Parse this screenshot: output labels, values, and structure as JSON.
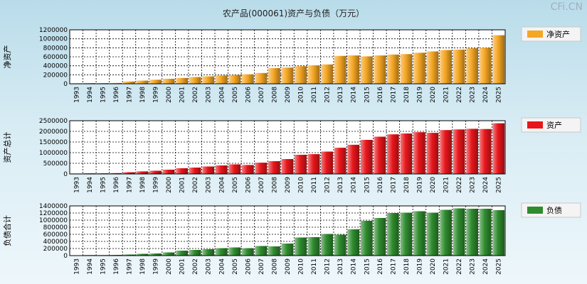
{
  "title": "农产品(000061)资产与负债（万元）",
  "watermark": "CFi.CN",
  "chart_data": [
    {
      "type": "bar",
      "series_name": "净资产",
      "ylabel": "净资产",
      "color": "#f5a623",
      "ylim": [
        0,
        1200000
      ],
      "yticks": [
        0,
        200000,
        400000,
        600000,
        800000,
        1000000,
        1200000
      ],
      "categories": [
        "1993",
        "1994",
        "1995",
        "1996",
        "1997",
        "1998",
        "1999",
        "2000",
        "2001",
        "2002",
        "2003",
        "2004",
        "2005",
        "2006",
        "2007",
        "2008",
        "2009",
        "2010",
        "2011",
        "2012",
        "2013",
        "2014",
        "2015",
        "2016",
        "2017",
        "2018",
        "2019",
        "2020",
        "2021",
        "2022",
        "2023",
        "2024",
        "2025"
      ],
      "values": [
        10000,
        15000,
        15000,
        18000,
        50000,
        70000,
        90000,
        110000,
        130000,
        150000,
        165000,
        185000,
        195000,
        210000,
        240000,
        350000,
        360000,
        390000,
        410000,
        430000,
        620000,
        630000,
        610000,
        630000,
        650000,
        660000,
        690000,
        720000,
        750000,
        760000,
        790000,
        800000,
        1080000
      ]
    },
    {
      "type": "bar",
      "series_name": "资产",
      "ylabel": "资产总计",
      "color": "#e8161b",
      "ylim": [
        0,
        2500000
      ],
      "yticks": [
        0,
        500000,
        1000000,
        1500000,
        2000000,
        2500000
      ],
      "categories": [
        "1993",
        "1994",
        "1995",
        "1996",
        "1997",
        "1998",
        "1999",
        "2000",
        "2001",
        "2002",
        "2003",
        "2004",
        "2005",
        "2006",
        "2007",
        "2008",
        "2009",
        "2010",
        "2011",
        "2012",
        "2013",
        "2014",
        "2015",
        "2016",
        "2017",
        "2018",
        "2019",
        "2020",
        "2021",
        "2022",
        "2023",
        "2024",
        "2025"
      ],
      "values": [
        20000,
        30000,
        30000,
        40000,
        80000,
        120000,
        150000,
        200000,
        270000,
        300000,
        350000,
        400000,
        450000,
        420000,
        530000,
        600000,
        700000,
        900000,
        930000,
        1050000,
        1230000,
        1370000,
        1600000,
        1750000,
        1860000,
        1900000,
        1960000,
        1930000,
        2060000,
        2090000,
        2120000,
        2110000,
        2380000
      ]
    },
    {
      "type": "bar",
      "series_name": "负债",
      "ylabel": "负债合计",
      "color": "#2e8b2e",
      "ylim": [
        0,
        1400000
      ],
      "yticks": [
        0,
        200000,
        400000,
        600000,
        800000,
        1000000,
        1200000,
        1400000
      ],
      "categories": [
        "1993",
        "1994",
        "1995",
        "1996",
        "1997",
        "1998",
        "1999",
        "2000",
        "2001",
        "2002",
        "2003",
        "2004",
        "2005",
        "2006",
        "2007",
        "2008",
        "2009",
        "2010",
        "2011",
        "2012",
        "2013",
        "2014",
        "2015",
        "2016",
        "2017",
        "2018",
        "2019",
        "2020",
        "2021",
        "2022",
        "2023",
        "2024",
        "2025"
      ],
      "values": [
        10000,
        15000,
        15000,
        20000,
        30000,
        50000,
        60000,
        90000,
        140000,
        160000,
        180000,
        210000,
        230000,
        210000,
        270000,
        260000,
        340000,
        510000,
        520000,
        610000,
        590000,
        740000,
        980000,
        1060000,
        1200000,
        1210000,
        1250000,
        1210000,
        1290000,
        1330000,
        1320000,
        1320000,
        1280000
      ]
    }
  ]
}
